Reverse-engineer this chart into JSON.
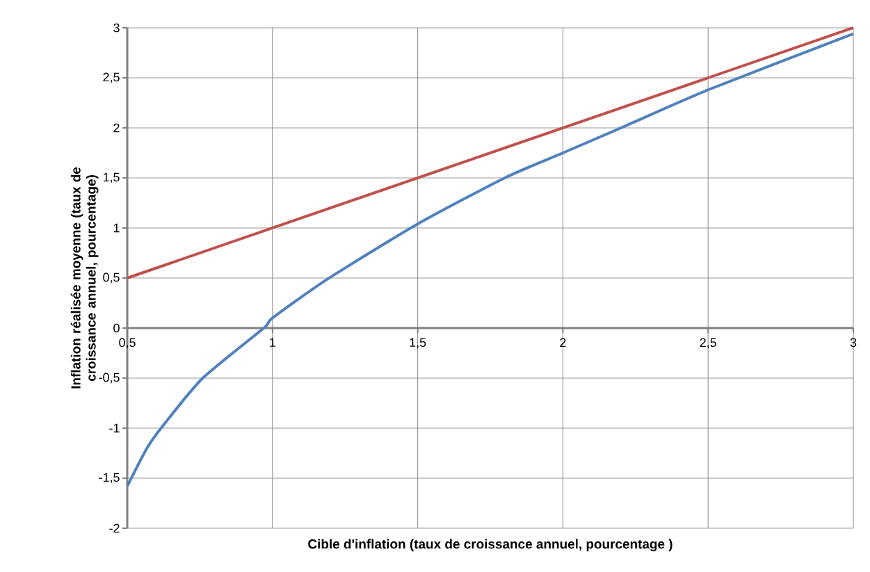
{
  "chart_data": {
    "type": "line",
    "xlabel": "Cible d'inflation (taux de croissance annuel, pourcentage )",
    "ylabel": "Inflation réalisée moyenne (taux de croissance annuel, pourcentage)",
    "series": [
      {
        "color": "#c0504d",
        "x": [
          0.5,
          3
        ],
        "values": [
          0.5,
          3
        ]
      },
      {
        "color": "#4f81bd",
        "x": [
          0.5,
          0.57,
          0.63,
          0.76,
          0.97,
          1,
          1.19,
          1.5,
          1.8,
          2,
          2.2,
          2.5,
          3
        ],
        "values": [
          -1.58,
          -1.19,
          -0.95,
          -0.5,
          0,
          0.1,
          0.49,
          1.04,
          1.5,
          1.75,
          2.0,
          2.38,
          2.94
        ]
      }
    ],
    "xlim": [
      0.5,
      3
    ],
    "ylim": [
      -2,
      3
    ],
    "xticks": [
      {
        "value": 0.5,
        "label": "0,5"
      },
      1,
      {
        "value": 1.5,
        "label": "1,5"
      },
      2,
      {
        "value": 2.5,
        "label": "2,5"
      },
      3
    ],
    "yticks": [
      -2,
      {
        "value": -1.5,
        "label": "-1,5"
      },
      -1,
      {
        "value": -0.5,
        "label": "-0,5"
      },
      0,
      {
        "value": 0.5,
        "label": "0,5"
      },
      1,
      {
        "value": 1.5,
        "label": "1,5"
      },
      2,
      {
        "value": 2.5,
        "label": "2,5"
      },
      3
    ],
    "grid": true,
    "marker": "none",
    "line_style": "solid"
  }
}
